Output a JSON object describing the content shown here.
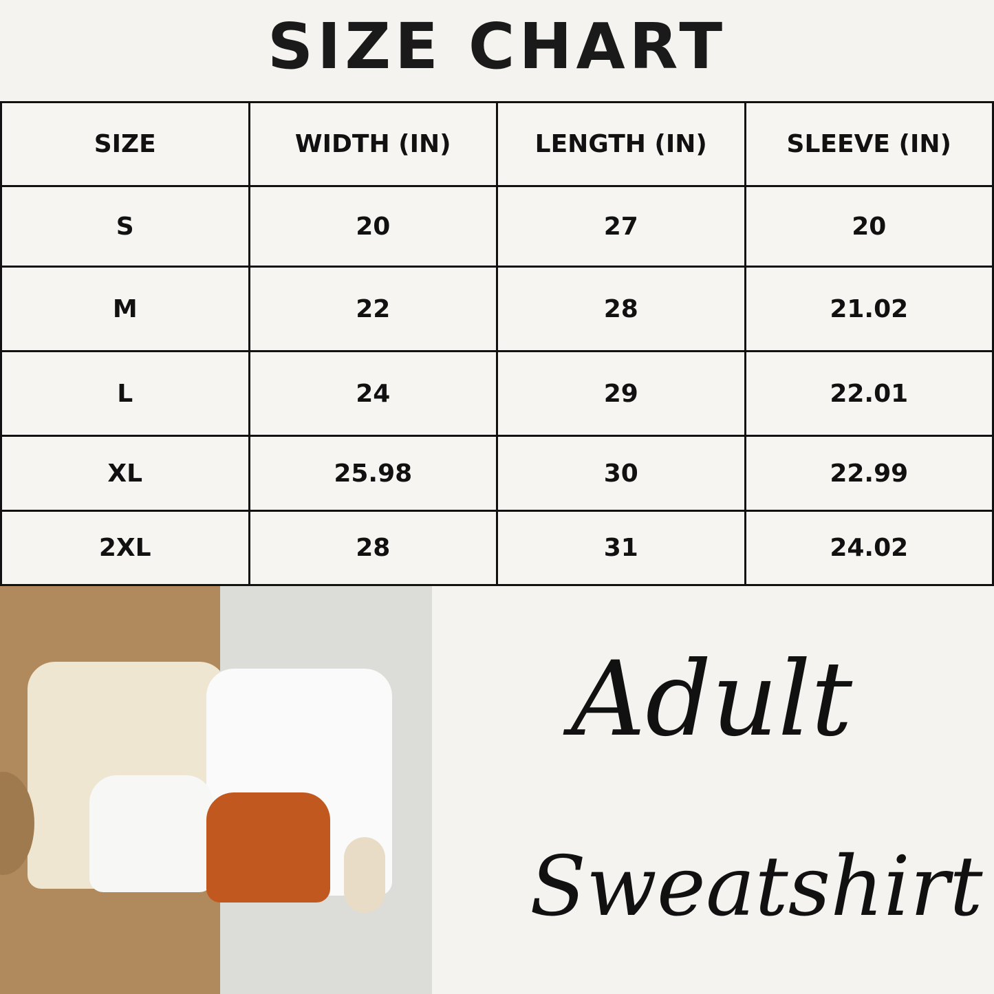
{
  "title": "SIZE CHART",
  "table": {
    "headers": [
      "SIZE",
      "WIDTH (IN)",
      "LENGTH (IN)",
      "SLEEVE (IN)"
    ],
    "rows": [
      [
        "S",
        "20",
        "27",
        "20"
      ],
      [
        "M",
        "22",
        "28",
        "21.02"
      ],
      [
        "L",
        "24",
        "29",
        "22.01"
      ],
      [
        "XL",
        "25.98",
        "30",
        "22.99"
      ],
      [
        "2XL",
        "28",
        "31",
        "24.02"
      ]
    ]
  },
  "script_text": {
    "line1": "Adult",
    "line2": "Sweatshirt"
  },
  "colors": {
    "background": "#f4f3ef",
    "text": "#111111",
    "burlap": "#b08a5c",
    "rust": "#c0581f",
    "cream": "#efe6d2"
  }
}
